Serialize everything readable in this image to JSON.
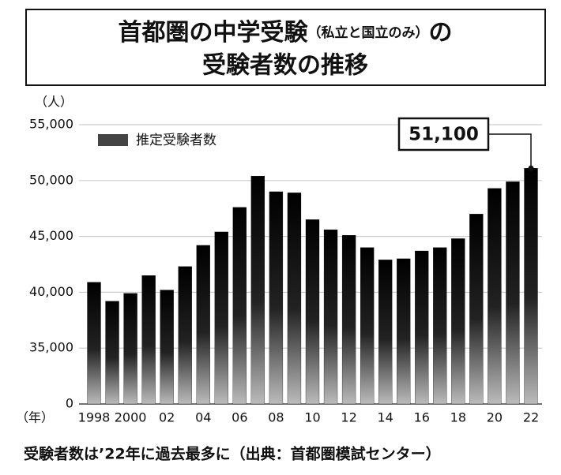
{
  "chart_data": {
    "type": "bar",
    "title_parts": [
      "首都圏の中学受験",
      "（私立と国立のみ）",
      "の",
      "受験者数の推移"
    ],
    "y_unit": "（人）",
    "x_unit": "（年）",
    "categories": [
      "1998",
      null,
      "2000",
      null,
      "02",
      null,
      "04",
      null,
      "06",
      null,
      "08",
      null,
      "10",
      null,
      "12",
      null,
      "14",
      null,
      "16",
      null,
      "18",
      null,
      "20",
      null,
      "22"
    ],
    "series": [
      {
        "name": "推定受験者数",
        "color": "#000000",
        "values": [
          40900,
          39200,
          39900,
          41500,
          40200,
          42300,
          44200,
          45400,
          47600,
          50400,
          49000,
          48900,
          46500,
          45600,
          45100,
          44000,
          42900,
          43000,
          43700,
          44000,
          44800,
          47000,
          49300,
          49900,
          51100
        ],
        "value_labels": [
          null,
          null,
          null,
          null,
          null,
          null,
          null,
          null,
          null,
          null,
          null,
          null,
          null,
          null,
          null,
          null,
          null,
          null,
          null,
          null,
          null,
          null,
          null,
          null,
          "51,100"
        ]
      }
    ],
    "ylim": [
      0,
      55000
    ],
    "yticks": [
      0,
      {
        "value": 35000,
        "label": "35,000"
      },
      {
        "value": 40000,
        "label": "40,000"
      },
      {
        "value": 45000,
        "label": "45,000"
      },
      {
        "value": 50000,
        "label": "50,000"
      },
      {
        "value": 55000,
        "label": "55,000"
      }
    ],
    "axis_break": true,
    "grid": true,
    "legend": "upper left",
    "caption": "受験者数は’22年に過去最多に（出典：首都圏模試センター）"
  }
}
